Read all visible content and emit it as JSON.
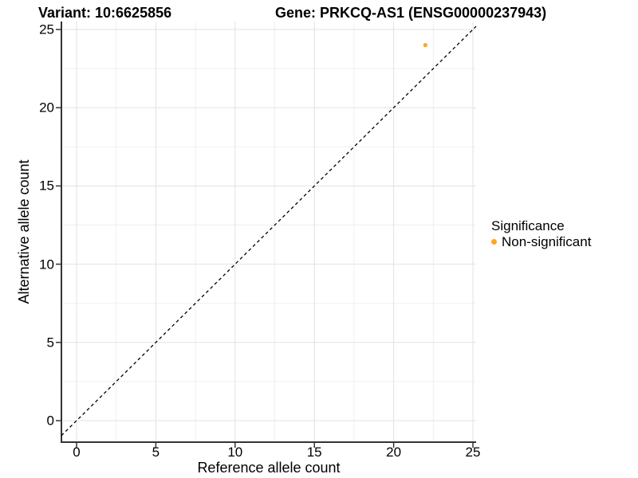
{
  "chart_data": {
    "type": "scatter",
    "title_left": "Variant: 10:6625856",
    "title_right": "Gene: PRKCQ-AS1 (ENSG00000237943)",
    "xlabel": "Reference allele count",
    "ylabel": "Alternative allele count",
    "xlim": [
      0,
      25
    ],
    "ylim": [
      0,
      25
    ],
    "x_ticks": [
      0,
      5,
      10,
      15,
      20,
      25
    ],
    "y_ticks": [
      0,
      5,
      10,
      15,
      20,
      25
    ],
    "x_minor_ticks": [
      2.5,
      7.5,
      12.5,
      17.5,
      22.5
    ],
    "y_minor_ticks": [
      2.5,
      7.5,
      12.5,
      17.5,
      22.5
    ],
    "grid": "major and minor gridlines on white background",
    "identity_line": {
      "slope": 1,
      "intercept": 0,
      "style": "dashed",
      "color": "#000000"
    },
    "series": [
      {
        "name": "Non-significant",
        "color": "#FFA51E",
        "points": [
          {
            "x": 22,
            "y": 24
          }
        ]
      }
    ],
    "legend": {
      "title": "Significance",
      "position": "right",
      "items": [
        {
          "label": "Non-significant",
          "color": "#FFA51E"
        }
      ]
    }
  },
  "colors": {
    "background": "#FFFFFF",
    "grid_major": "#E2E2E2",
    "grid_minor": "#F0F0F0",
    "axis_line": "#333333",
    "text": "#000000",
    "point": "#FFA51E"
  }
}
